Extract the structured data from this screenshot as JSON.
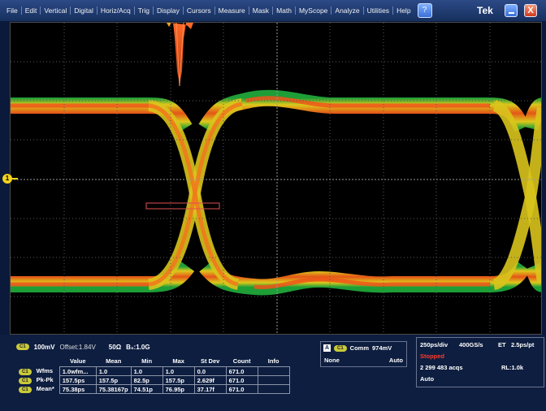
{
  "menu": {
    "items": [
      "File",
      "Edit",
      "Vertical",
      "Digital",
      "Horiz/Acq",
      "Trig",
      "Display",
      "Cursors",
      "Measure",
      "Mask",
      "Math",
      "MyScope",
      "Analyze",
      "Utilities",
      "Help"
    ],
    "brand": "Tek",
    "close_glyph": "X"
  },
  "display": {
    "channel_marker": "1"
  },
  "channel": {
    "badge": "C1",
    "scale": "100mV",
    "offset": "Offset:1.84V",
    "impedance": "50Ω",
    "bandwidth": "B₅:1.0G"
  },
  "measurements": {
    "headers": [
      "",
      "Value",
      "Mean",
      "Min",
      "Max",
      "St Dev",
      "Count",
      "Info"
    ],
    "rows": [
      {
        "badge": "C1",
        "label": "Wfms",
        "values": [
          "1.0wfm...",
          "1.0",
          "1.0",
          "1.0",
          "0.0",
          "671.0",
          ""
        ]
      },
      {
        "badge": "C1",
        "label": "Pk-Pk",
        "values": [
          "157.5ps",
          "157.5p",
          "82.5p",
          "157.5p",
          "2.629f",
          "671.0",
          ""
        ]
      },
      {
        "badge": "C1",
        "label": "Mean*",
        "values": [
          "75.38ps",
          "75.38167p",
          "74.51p",
          "76.95p",
          "37.17f",
          "671.0",
          ""
        ]
      }
    ]
  },
  "trigger": {
    "a_label": "A",
    "badge": "C1",
    "source": "Comm",
    "level": "974mV",
    "coupling": "None",
    "mode": "Auto"
  },
  "horizontal": {
    "scale": "250ps/div",
    "sample_rate": "400GS/s",
    "et": "ET",
    "pt": "2.5ps/pt",
    "status": "Stopped",
    "acqs": "2 299 483 acqs",
    "record_length": "RL:1.0k",
    "mode": "Auto",
    "status_color": "#ff3a2a"
  }
}
